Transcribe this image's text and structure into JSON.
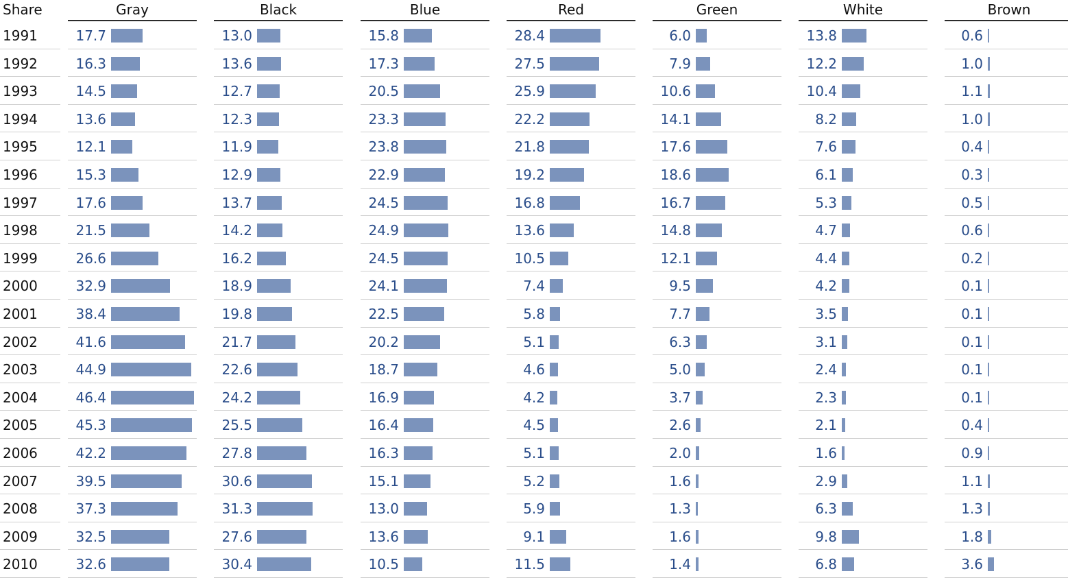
{
  "chart_data": {
    "type": "table",
    "row_header": "Share",
    "categories": [
      "1991",
      "1992",
      "1993",
      "1994",
      "1995",
      "1996",
      "1997",
      "1998",
      "1999",
      "2000",
      "2001",
      "2002",
      "2003",
      "2004",
      "2005",
      "2006",
      "2007",
      "2008",
      "2009",
      "2010"
    ],
    "series": [
      {
        "name": "Gray",
        "values": [
          "17.7",
          "16.3",
          "14.5",
          "13.6",
          "12.1",
          "15.3",
          "17.6",
          "21.5",
          "26.6",
          "32.9",
          "38.4",
          "41.6",
          "44.9",
          "46.4",
          "45.3",
          "42.2",
          "39.5",
          "37.3",
          "32.5",
          "32.6"
        ]
      },
      {
        "name": "Black",
        "values": [
          "13.0",
          "13.6",
          "12.7",
          "12.3",
          "11.9",
          "12.9",
          "13.7",
          "14.2",
          "16.2",
          "18.9",
          "19.8",
          "21.7",
          "22.6",
          "24.2",
          "25.5",
          "27.8",
          "30.6",
          "31.3",
          "27.6",
          "30.4"
        ]
      },
      {
        "name": "Blue",
        "values": [
          "15.8",
          "17.3",
          "20.5",
          "23.3",
          "23.8",
          "22.9",
          "24.5",
          "24.9",
          "24.5",
          "24.1",
          "22.5",
          "20.2",
          "18.7",
          "16.9",
          "16.4",
          "16.3",
          "15.1",
          "13.0",
          "13.6",
          "10.5"
        ]
      },
      {
        "name": "Red",
        "values": [
          "28.4",
          "27.5",
          "25.9",
          "22.2",
          "21.8",
          "19.2",
          "16.8",
          "13.6",
          "10.5",
          "7.4",
          "5.8",
          "5.1",
          "4.6",
          "4.2",
          "4.5",
          "5.1",
          "5.2",
          "5.9",
          "9.1",
          "11.5"
        ]
      },
      {
        "name": "Green",
        "values": [
          "6.0",
          "7.9",
          "10.6",
          "14.1",
          "17.6",
          "18.6",
          "16.7",
          "14.8",
          "12.1",
          "9.5",
          "7.7",
          "6.3",
          "5.0",
          "3.7",
          "2.6",
          "2.0",
          "1.6",
          "1.3",
          "1.6",
          "1.4"
        ]
      },
      {
        "name": "White",
        "values": [
          "13.8",
          "12.2",
          "10.4",
          "8.2",
          "7.6",
          "6.1",
          "5.3",
          "4.7",
          "4.4",
          "4.2",
          "3.5",
          "3.1",
          "2.4",
          "2.3",
          "2.1",
          "1.6",
          "2.9",
          "6.3",
          "9.8",
          "6.8"
        ]
      },
      {
        "name": "Brown",
        "values": [
          "0.6",
          "1.0",
          "1.1",
          "1.0",
          "0.4",
          "0.3",
          "0.5",
          "0.6",
          "0.2",
          "0.1",
          "0.1",
          "0.1",
          "0.1",
          "0.1",
          "0.4",
          "0.9",
          "1.1",
          "1.3",
          "1.8",
          "3.6"
        ]
      }
    ],
    "bar_color": "#7b93bc",
    "value_color": "#2a4d8a",
    "grid": true
  }
}
